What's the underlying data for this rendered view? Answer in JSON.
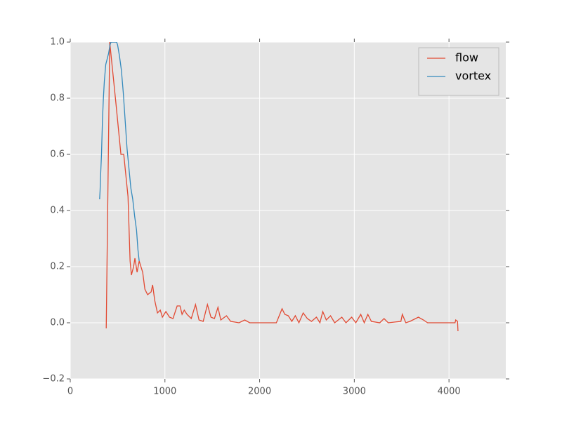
{
  "chart_data": {
    "type": "line",
    "xlim": [
      0,
      4600
    ],
    "ylim": [
      -0.2,
      1.0
    ],
    "xticks": [
      0,
      1000,
      2000,
      3000,
      4000
    ],
    "yticks": [
      {
        "value": -0.2,
        "label": "−0.2"
      },
      {
        "value": 0.0,
        "label": "0.0"
      },
      0.2,
      0.4,
      0.6,
      0.8,
      {
        "value": 1.0,
        "label": "1.0"
      }
    ],
    "grid": true,
    "legend": "upper right",
    "series": [
      {
        "name": "flow",
        "color": "#E24A33",
        "x": [
          380,
          417,
          483,
          535,
          565,
          610,
          632,
          646,
          669,
          683,
          706,
          728,
          765,
          788,
          817,
          854,
          870,
          892,
          921,
          951,
          973,
          1010,
          1048,
          1085,
          1129,
          1159,
          1181,
          1204,
          1233,
          1278,
          1323,
          1360,
          1404,
          1449,
          1486,
          1523,
          1560,
          1590,
          1650,
          1694,
          1783,
          1843,
          1895,
          2177,
          2237,
          2266,
          2303,
          2340,
          2377,
          2415,
          2460,
          2504,
          2548,
          2600,
          2637,
          2667,
          2704,
          2749,
          2793,
          2868,
          2912,
          2972,
          3016,
          3068,
          3105,
          3143,
          3180,
          3269,
          3314,
          3358,
          3492,
          3507,
          3544,
          3588,
          3677,
          3730,
          3774,
          3975,
          4064,
          4071,
          4090,
          4095
        ],
        "values": [
          -0.02,
          1.0,
          0.78,
          0.6,
          0.6,
          0.45,
          0.22,
          0.17,
          0.2,
          0.23,
          0.18,
          0.22,
          0.18,
          0.12,
          0.1,
          0.11,
          0.135,
          0.08,
          0.035,
          0.045,
          0.02,
          0.04,
          0.02,
          0.015,
          0.06,
          0.06,
          0.03,
          0.045,
          0.03,
          0.015,
          0.065,
          0.01,
          0.005,
          0.065,
          0.02,
          0.015,
          0.055,
          0.01,
          0.025,
          0.005,
          0.0,
          0.01,
          0.0,
          0.0,
          0.05,
          0.03,
          0.025,
          0.005,
          0.025,
          0.0,
          0.035,
          0.015,
          0.005,
          0.02,
          0.0,
          0.04,
          0.01,
          0.025,
          0.0,
          0.02,
          0.0,
          0.02,
          0.0,
          0.03,
          0.0,
          0.03,
          0.005,
          0.0,
          0.015,
          0.0,
          0.005,
          0.03,
          0.0,
          0.005,
          0.02,
          0.01,
          0.0,
          0.0,
          0.0,
          0.01,
          0.005,
          -0.03
        ]
      },
      {
        "name": "vortex",
        "color": "#348ABD",
        "x": [
          310,
          315,
          320,
          330,
          340,
          350,
          360,
          375,
          390,
          405,
          420,
          430,
          450,
          470,
          490,
          500,
          520,
          540,
          560,
          580,
          600,
          620,
          640,
          660,
          680,
          700,
          715,
          728
        ],
        "values": [
          0.44,
          0.47,
          0.52,
          0.6,
          0.72,
          0.8,
          0.86,
          0.92,
          0.94,
          0.96,
          0.99,
          1.0,
          1.0,
          1.0,
          1.0,
          0.99,
          0.95,
          0.9,
          0.82,
          0.72,
          0.62,
          0.55,
          0.48,
          0.44,
          0.38,
          0.33,
          0.26,
          0.22
        ]
      }
    ]
  }
}
